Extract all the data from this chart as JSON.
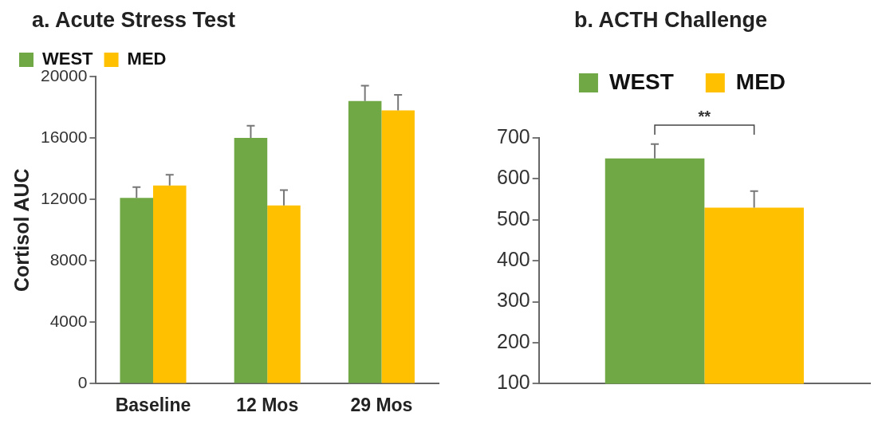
{
  "chart_data": [
    {
      "type": "bar",
      "title": "a. Acute Stress Test",
      "ylabel": "Cortisol AUC",
      "categories": [
        "Baseline",
        "12 Mos",
        "29 Mos"
      ],
      "series": [
        {
          "name": "WEST",
          "color": "#70a845",
          "values": [
            12100,
            16000,
            18400
          ],
          "errors": [
            [
              12100,
              12800
            ],
            [
              16000,
              16800
            ],
            [
              18400,
              19400
            ]
          ]
        },
        {
          "name": "MED",
          "color": "#ffc000",
          "values": [
            12900,
            11600,
            17800
          ],
          "errors": [
            [
              12900,
              13600
            ],
            [
              11600,
              12600
            ],
            [
              17800,
              18800
            ]
          ]
        }
      ],
      "ylim": [
        0,
        20000
      ],
      "yticks": [
        0,
        4000,
        8000,
        12000,
        16000,
        20000
      ],
      "grid": false,
      "legend": "top"
    },
    {
      "type": "bar",
      "title": "b. ACTH Challenge",
      "categories": [
        null
      ],
      "series": [
        {
          "name": "WEST",
          "color": "#70a845",
          "values": [
            650
          ],
          "errors": [
            [
              650,
              685
            ]
          ]
        },
        {
          "name": "MED",
          "color": "#ffc000",
          "values": [
            530
          ],
          "errors": [
            [
              530,
              570
            ]
          ]
        }
      ],
      "ylim": [
        100,
        700
      ],
      "yticks": [
        100,
        200,
        300,
        400,
        500,
        600,
        700
      ],
      "grid": false,
      "legend": "top",
      "annotations": [
        "**"
      ]
    }
  ]
}
